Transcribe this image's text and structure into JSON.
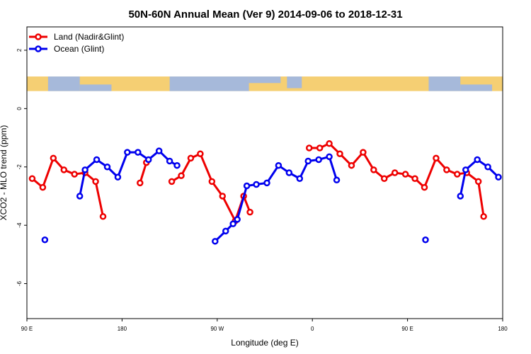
{
  "chart_data": {
    "type": "line",
    "title": "50N-60N Annual Mean (Ver 9)   2014-09-06 to 2018-12-31",
    "xlabel": "Longitude (deg E)",
    "ylabel": "XCO2 - MLO trend (ppm)",
    "xlim": [
      90,
      540
    ],
    "ylim": [
      -7.2,
      2.8
    ],
    "x_ticks": [
      90,
      180,
      270,
      360,
      450,
      540
    ],
    "x_tick_labels": [
      "90 E",
      "180",
      "90 W",
      "0",
      "90 E",
      "180"
    ],
    "y_ticks": [
      2,
      0,
      -2,
      -4,
      -6
    ],
    "y_tick_labels": [
      "2",
      "0",
      "-2",
      "-4",
      "-6"
    ],
    "map_band": {
      "y_top": 1.1,
      "y_bottom": 0.6
    },
    "legend_position": "top-left",
    "series": [
      {
        "name": "Land (Nadir&Glint)",
        "color": "#ee0000",
        "segments": [
          [
            [
              95,
              -2.4
            ],
            [
              105,
              -2.7
            ],
            [
              115,
              -1.7
            ],
            [
              125,
              -2.1
            ],
            [
              135,
              -2.25
            ],
            [
              145,
              -2.2
            ],
            [
              155,
              -2.5
            ],
            [
              162,
              -3.7
            ]
          ],
          [
            [
              197,
              -2.55
            ],
            [
              203,
              -1.85
            ]
          ],
          [
            [
              227,
              -2.5
            ],
            [
              236,
              -2.3
            ],
            [
              245,
              -1.7
            ],
            [
              254,
              -1.55
            ],
            [
              265,
              -2.5
            ],
            [
              275,
              -3.0
            ],
            [
              287,
              -3.85
            ],
            [
              295,
              -3.0
            ],
            [
              301,
              -3.55
            ]
          ],
          [
            [
              357,
              -1.35
            ],
            [
              367,
              -1.35
            ],
            [
              376,
              -1.2
            ],
            [
              386,
              -1.55
            ],
            [
              397,
              -1.95
            ],
            [
              408,
              -1.5
            ],
            [
              418,
              -2.1
            ],
            [
              428,
              -2.4
            ],
            [
              438,
              -2.2
            ],
            [
              448,
              -2.25
            ],
            [
              457,
              -2.4
            ],
            [
              466,
              -2.7
            ],
            [
              477,
              -1.7
            ],
            [
              487,
              -2.1
            ],
            [
              497,
              -2.25
            ],
            [
              506,
              -2.2
            ],
            [
              517,
              -2.5
            ],
            [
              522,
              -3.7
            ]
          ]
        ]
      },
      {
        "name": "Ocean (Glint)",
        "color": "#0000ee",
        "segments": [
          [
            [
              107,
              -4.5
            ]
          ],
          [
            [
              140,
              -3.0
            ],
            [
              145,
              -2.1
            ],
            [
              156,
              -1.75
            ],
            [
              166,
              -2.0
            ],
            [
              176,
              -2.35
            ],
            [
              185,
              -1.5
            ],
            [
              195,
              -1.5
            ],
            [
              205,
              -1.75
            ],
            [
              215,
              -1.45
            ],
            [
              225,
              -1.8
            ],
            [
              232,
              -1.95
            ]
          ],
          [
            [
              268,
              -4.55
            ],
            [
              278,
              -4.2
            ],
            [
              285,
              -3.95
            ],
            [
              289,
              -3.8
            ],
            [
              298,
              -2.65
            ],
            [
              307,
              -2.6
            ],
            [
              317,
              -2.55
            ],
            [
              328,
              -1.95
            ],
            [
              338,
              -2.2
            ],
            [
              348,
              -2.4
            ],
            [
              356,
              -1.8
            ],
            [
              366,
              -1.75
            ],
            [
              376,
              -1.65
            ],
            [
              383,
              -2.45
            ]
          ],
          [
            [
              467,
              -4.5
            ]
          ],
          [
            [
              500,
              -3.0
            ],
            [
              505,
              -2.1
            ],
            [
              516,
              -1.75
            ],
            [
              526,
              -2.0
            ],
            [
              536,
              -2.35
            ]
          ]
        ]
      }
    ]
  }
}
